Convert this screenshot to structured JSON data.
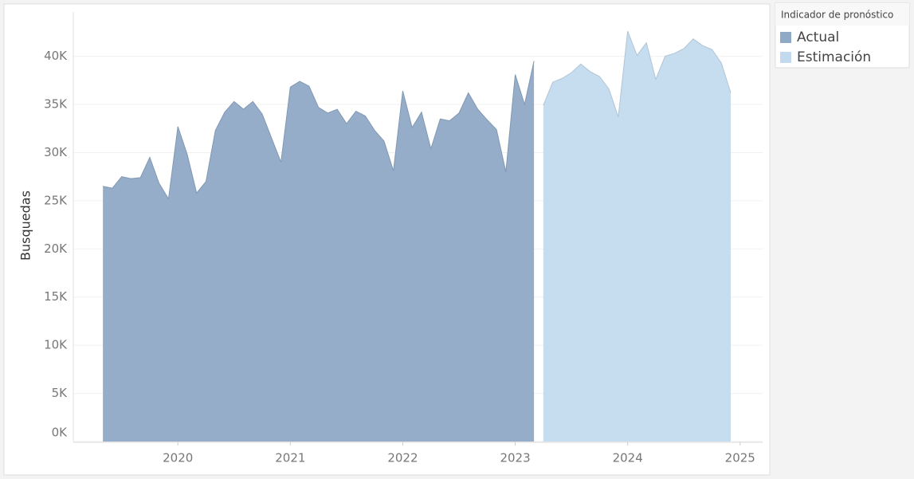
{
  "chart_data": {
    "type": "area",
    "y_label": "Busquedas",
    "legend_title": "Indicador de pronóstico",
    "xlim": [
      2019.07,
      2025.2
    ],
    "xticks": [
      2020,
      2021,
      2022,
      2023,
      2024,
      2025
    ],
    "ylim": [
      0,
      44600
    ],
    "yticks": [
      {
        "value": 0,
        "label": "0K"
      },
      {
        "value": 5000,
        "label": "5K"
      },
      {
        "value": 10000,
        "label": "10K"
      },
      {
        "value": 15000,
        "label": "15K"
      },
      {
        "value": 20000,
        "label": "20K"
      },
      {
        "value": 25000,
        "label": "25K"
      },
      {
        "value": 30000,
        "label": "30K"
      },
      {
        "value": 35000,
        "label": "35K"
      },
      {
        "value": 40000,
        "label": "40K"
      }
    ],
    "grid": true,
    "series": [
      {
        "name": "Actual",
        "color": "#8fa9c6",
        "x": [
          2019.3333,
          2019.4167,
          2019.5,
          2019.5833,
          2019.6667,
          2019.75,
          2019.8333,
          2019.9167,
          2020.0,
          2020.0833,
          2020.1667,
          2020.25,
          2020.3333,
          2020.4167,
          2020.5,
          2020.5833,
          2020.6667,
          2020.75,
          2020.8333,
          2020.9167,
          2021.0,
          2021.0833,
          2021.1667,
          2021.25,
          2021.3333,
          2021.4167,
          2021.5,
          2021.5833,
          2021.6667,
          2021.75,
          2021.8333,
          2021.9167,
          2022.0,
          2022.0833,
          2022.1667,
          2022.25,
          2022.3333,
          2022.4167,
          2022.5,
          2022.5833,
          2022.6667,
          2022.75,
          2022.8333,
          2022.9167,
          2023.0,
          2023.0833,
          2023.1667
        ],
        "values": [
          26500,
          26300,
          27500,
          27300,
          27400,
          29500,
          26800,
          25200,
          32700,
          29800,
          25800,
          27000,
          32300,
          34200,
          35300,
          34500,
          35300,
          34000,
          31500,
          29000,
          36800,
          37400,
          36900,
          34700,
          34100,
          34500,
          33000,
          34300,
          33800,
          32300,
          31200,
          28100,
          36400,
          32600,
          34200,
          30400,
          33500,
          33300,
          34100,
          36200,
          34500,
          33400,
          32400,
          28000,
          38100,
          35000,
          39500
        ]
      },
      {
        "name": "Estimación",
        "color": "#c3daee",
        "x": [
          2023.25,
          2023.3333,
          2023.4167,
          2023.5,
          2023.5833,
          2023.6667,
          2023.75,
          2023.8333,
          2023.9167,
          2024.0,
          2024.0833,
          2024.1667,
          2024.25,
          2024.3333,
          2024.4167,
          2024.5,
          2024.5833,
          2024.6667,
          2024.75,
          2024.8333,
          2024.9167
        ],
        "values": [
          34900,
          37300,
          37700,
          38300,
          39200,
          38400,
          37900,
          36600,
          33700,
          42600,
          40100,
          41400,
          37600,
          40000,
          40300,
          40800,
          41800,
          41100,
          40700,
          39300,
          36200
        ]
      }
    ]
  }
}
